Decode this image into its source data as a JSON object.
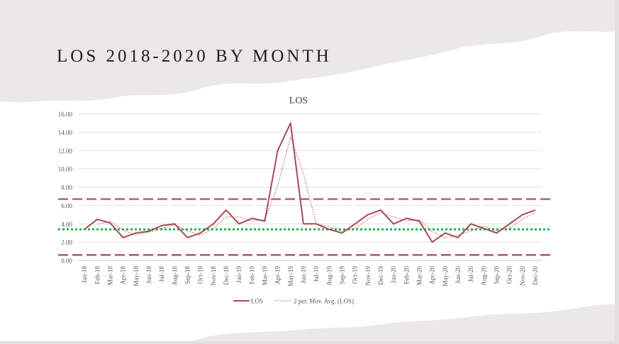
{
  "slide": {
    "title": "LOS 2018-2020 BY MONTH"
  },
  "chart_data": {
    "type": "line",
    "title": "LOS",
    "xlabel": "",
    "ylabel": "",
    "ylim": [
      0,
      16
    ],
    "yticks": [
      "0.00",
      "2.00",
      "4.00",
      "6.00",
      "8.00",
      "10.00",
      "12.00",
      "14.00",
      "16.00"
    ],
    "grid": true,
    "legend_position": "bottom",
    "categories": [
      "Jan-18",
      "Feb-18",
      "Mar-18",
      "Apr-18",
      "May-18",
      "Jun-18",
      "Jul-18",
      "Aug-18",
      "Sep-18",
      "Oct-18",
      "Nov-18",
      "Dec-18",
      "Jan-19",
      "Feb-19",
      "Mar-19",
      "Apr-19",
      "May-19",
      "Jun-19",
      "Jul-19",
      "Aug-19",
      "Sep-19",
      "Oct-19",
      "Nov-19",
      "Dec-19",
      "Jan-20",
      "Feb-20",
      "Mar-20",
      "Apr-20",
      "May-20",
      "Jun-20",
      "Jul-20",
      "Aug-20",
      "Sep-20",
      "Oct-20",
      "Nov-20",
      "Dec-20"
    ],
    "series": [
      {
        "name": "LOS",
        "color": "#a84a56",
        "style": "solid",
        "values": [
          3.4,
          4.5,
          4.1,
          2.5,
          3.0,
          3.2,
          3.8,
          4.0,
          2.5,
          3.0,
          4.0,
          5.5,
          4.0,
          4.6,
          4.3,
          12.0,
          15.0,
          4.0,
          4.0,
          3.4,
          3.0,
          4.0,
          5.0,
          5.5,
          4.0,
          4.6,
          4.3,
          2.0,
          3.0,
          2.5,
          4.0,
          3.5,
          3.0,
          4.0,
          5.0,
          5.5
        ]
      },
      {
        "name": "2 per. Mov. Avg. (LOS)",
        "color": "#a84a56",
        "style": "dotted",
        "values": [
          null,
          3.95,
          4.3,
          3.3,
          2.75,
          3.1,
          3.5,
          3.9,
          3.25,
          2.75,
          3.5,
          4.75,
          4.75,
          4.3,
          4.45,
          8.15,
          13.5,
          9.5,
          4.0,
          3.7,
          3.2,
          3.5,
          4.5,
          5.25,
          4.75,
          4.3,
          4.45,
          3.15,
          2.5,
          2.75,
          3.25,
          3.75,
          3.25,
          3.5,
          4.5,
          5.25
        ]
      }
    ],
    "reference_lines": [
      {
        "kind": "upper",
        "value": 6.7,
        "color": "#a84a56",
        "style": "dashed"
      },
      {
        "kind": "mean",
        "value": 3.4,
        "color": "#22b14c",
        "style": "dotted"
      },
      {
        "kind": "lower",
        "value": 0.6,
        "color": "#a84a56",
        "style": "dashed"
      }
    ]
  }
}
